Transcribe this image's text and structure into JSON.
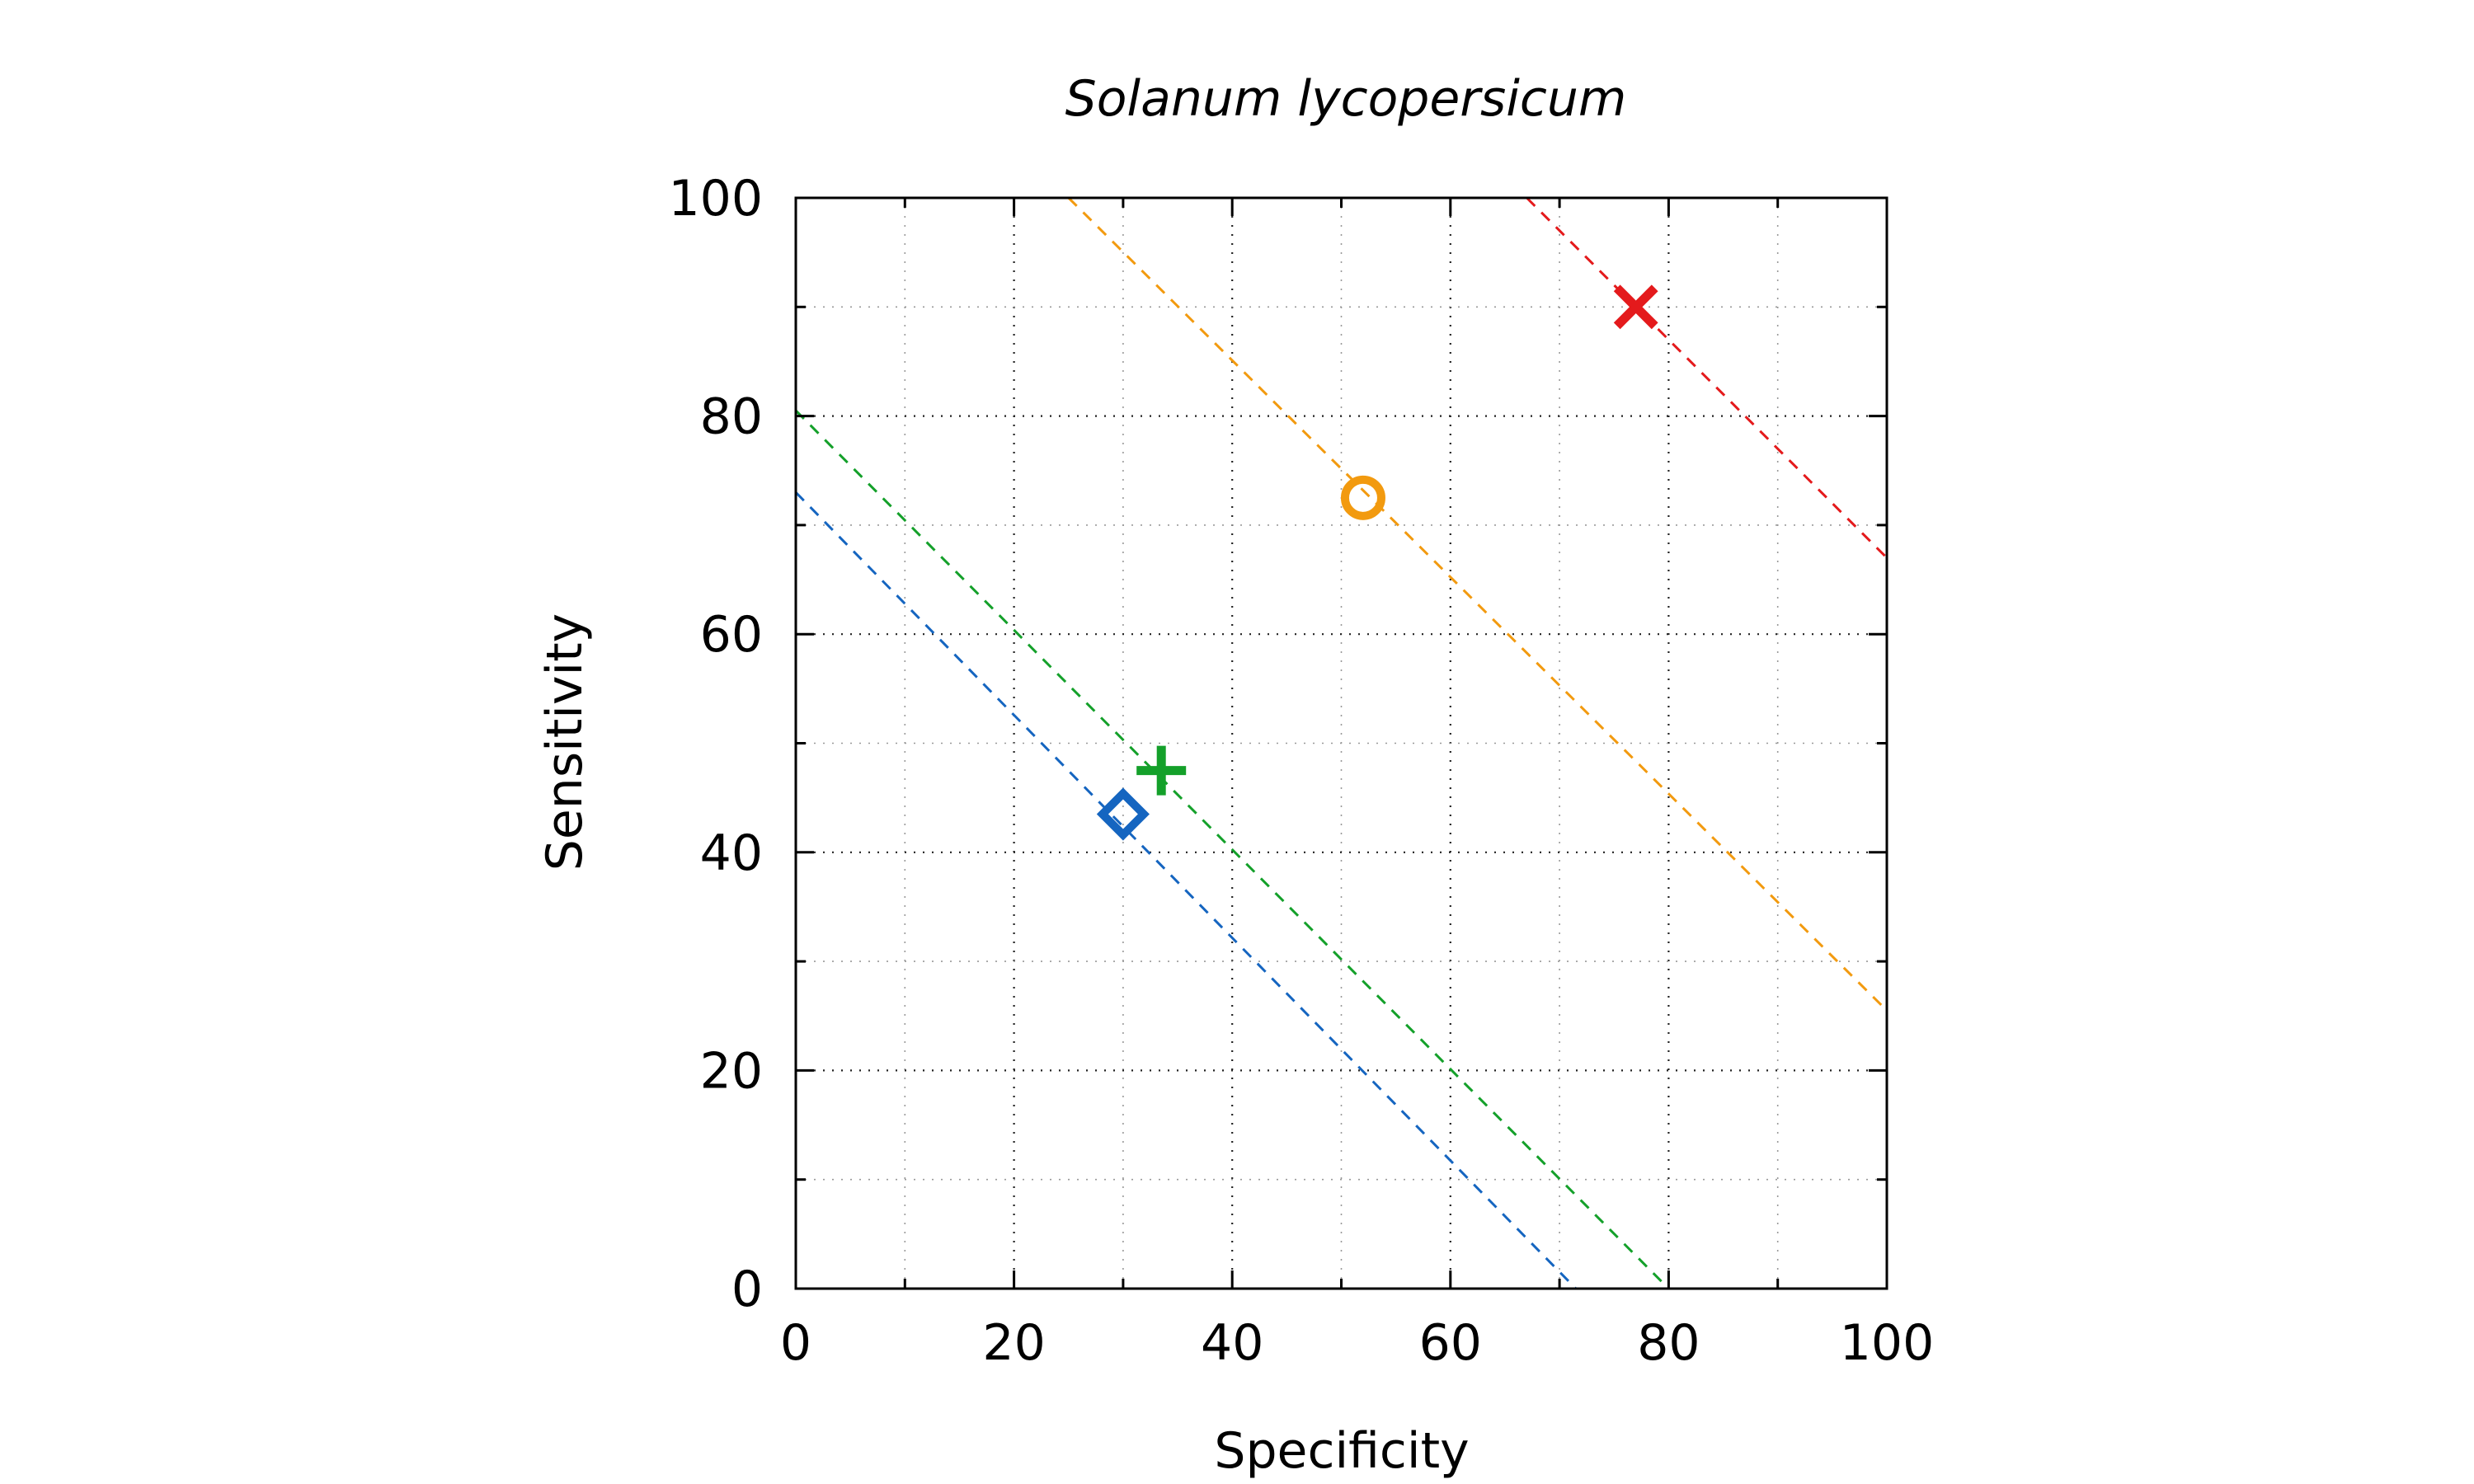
{
  "chart_data": {
    "type": "scatter",
    "title": "Solanum lycopersicum",
    "xlabel": "Specificity",
    "ylabel": "Sensitivity",
    "xlim": [
      0,
      100
    ],
    "ylim": [
      0,
      100
    ],
    "xticks": [
      0,
      20,
      40,
      60,
      80,
      100
    ],
    "yticks": [
      0,
      20,
      40,
      60,
      80,
      100
    ],
    "grid": true,
    "legend": "none",
    "series": [
      {
        "marker": "x",
        "color": "#e41a1c",
        "x": [
          77
        ],
        "y": [
          90
        ],
        "trend_line": [
          [
            67,
            100
          ],
          [
            100,
            67
          ]
        ]
      },
      {
        "marker": "circle",
        "color": "#f29a0f",
        "x": [
          52
        ],
        "y": [
          72.5
        ],
        "trend_line": [
          [
            25,
            100
          ],
          [
            100,
            25.5
          ]
        ]
      },
      {
        "marker": "plus",
        "color": "#14a02a",
        "x": [
          33.5
        ],
        "y": [
          47.5
        ],
        "trend_line": [
          [
            0,
            80.5
          ],
          [
            80,
            0
          ]
        ]
      },
      {
        "marker": "diamond",
        "color": "#1565c0",
        "x": [
          30
        ],
        "y": [
          43.5
        ],
        "trend_line": [
          [
            0,
            73
          ],
          [
            71.5,
            0
          ]
        ]
      }
    ]
  }
}
